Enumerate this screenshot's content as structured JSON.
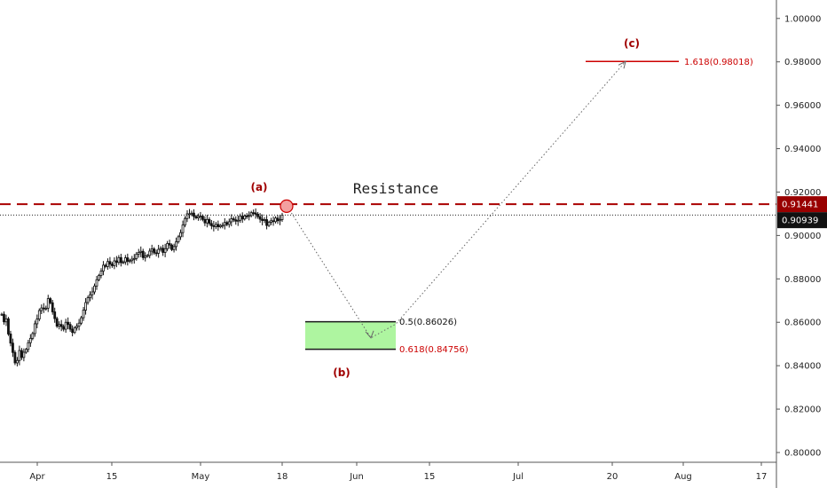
{
  "chart_data": {
    "type": "candlestick",
    "y_axis": {
      "ticks": [
        "1.00000",
        "0.98000",
        "0.96000",
        "0.94000",
        "0.92000",
        "0.90000",
        "0.88000",
        "0.86000",
        "0.84000",
        "0.82000",
        "0.80000"
      ],
      "ylim": [
        0.7955,
        1.0085
      ]
    },
    "x_axis": {
      "ticks": [
        "Apr",
        "15",
        "May",
        "18",
        "Jun",
        "15",
        "Jul",
        "20",
        "Aug",
        "17"
      ]
    },
    "price_tags": {
      "resistance": {
        "text": "0.91441",
        "value": 0.91441,
        "color": "#990000"
      },
      "last": {
        "text": "0.90939",
        "value": 0.90939,
        "color": "#111111"
      }
    },
    "resistance": {
      "label": "Resistance",
      "value": 0.91441,
      "color": "#aa0000"
    },
    "wave_labels": {
      "a": "(a)",
      "b": "(b)",
      "c": "(c)"
    },
    "fib_levels": {
      "half": {
        "text": "0.5(0.86026)",
        "value": 0.86026
      },
      "golden": {
        "text": "0.618(0.84756)",
        "value": 0.84756
      },
      "extension": {
        "text": "1.618(0.98018)",
        "value": 0.98018
      }
    },
    "projection_path_values": [
      0.9145,
      0.8528,
      0.8592,
      0.98018
    ],
    "price_series": [
      0.8637,
      0.8602,
      0.8616,
      0.8546,
      0.8504,
      0.8461,
      0.8413,
      0.8424,
      0.847,
      0.8438,
      0.8462,
      0.8475,
      0.8506,
      0.8526,
      0.8548,
      0.8593,
      0.8615,
      0.8654,
      0.8666,
      0.8665,
      0.8665,
      0.8709,
      0.869,
      0.8648,
      0.8617,
      0.8582,
      0.859,
      0.858,
      0.8568,
      0.86,
      0.859,
      0.8568,
      0.8553,
      0.8575,
      0.8582,
      0.8596,
      0.8621,
      0.8656,
      0.8691,
      0.8713,
      0.8727,
      0.874,
      0.8767,
      0.8796,
      0.8816,
      0.8836,
      0.8863,
      0.8857,
      0.888,
      0.8868,
      0.8861,
      0.8883,
      0.8876,
      0.8898,
      0.8875,
      0.8878,
      0.8897,
      0.8881,
      0.8884,
      0.8891,
      0.8894,
      0.8914,
      0.8922,
      0.8927,
      0.8898,
      0.8905,
      0.8908,
      0.8928,
      0.8938,
      0.892,
      0.8918,
      0.8936,
      0.8941,
      0.8922,
      0.8939,
      0.8963,
      0.8956,
      0.8935,
      0.8949,
      0.8971,
      0.8994,
      0.9013,
      0.9048,
      0.9078,
      0.91,
      0.91,
      0.9103,
      0.9088,
      0.9081,
      0.9088,
      0.9089,
      0.9074,
      0.9058,
      0.9074,
      0.9055,
      0.9045,
      0.9041,
      0.9051,
      0.904,
      0.9046,
      0.9047,
      0.906,
      0.9051,
      0.9063,
      0.9077,
      0.9072,
      0.9066,
      0.907,
      0.9089,
      0.9076,
      0.909,
      0.9089,
      0.9092,
      0.9105,
      0.9104,
      0.9098,
      0.9087,
      0.9075,
      0.9069,
      0.9073,
      0.9046,
      0.9061,
      0.9068,
      0.9064,
      0.908,
      0.9068,
      0.9073,
      0.9094
    ],
    "colors": {
      "candles": "#111111",
      "resistance": "#aa0000",
      "fib_zone_fill": "#aef5a0",
      "fib_zone_line": "#1a1a1a",
      "wave_label": "#a00000",
      "extension_line": "#cc0000",
      "marker_fill": "#f3a0a0",
      "marker_stroke": "#cc0000"
    }
  }
}
